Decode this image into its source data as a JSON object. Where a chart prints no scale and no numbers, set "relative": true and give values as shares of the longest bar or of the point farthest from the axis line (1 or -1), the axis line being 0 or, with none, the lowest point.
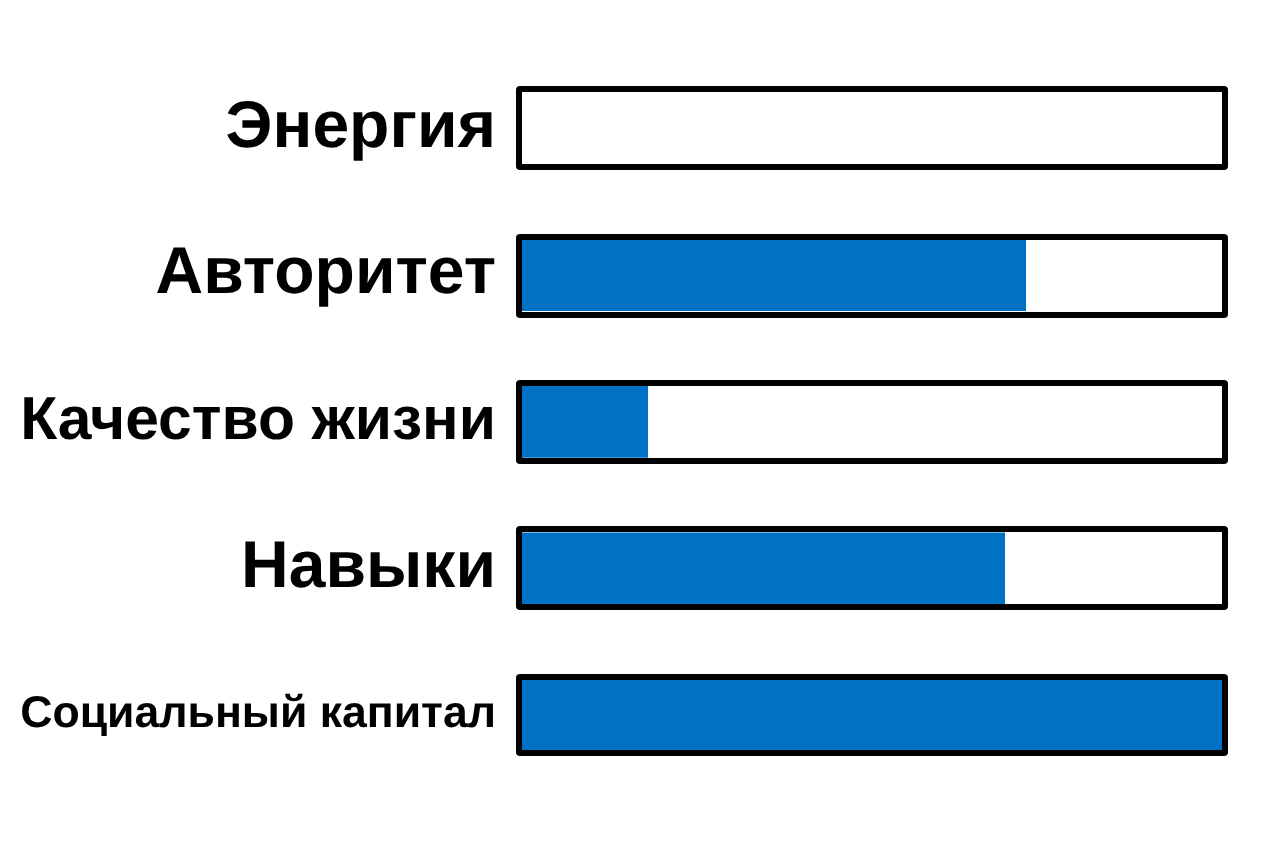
{
  "chart_data": {
    "type": "bar",
    "orientation": "horizontal",
    "relative": true,
    "tick_labels": "y",
    "categories": [
      "Энергия",
      "Авторитет",
      "Качество жизни",
      "Навыки",
      "Социальный капитал"
    ],
    "values": [
      0,
      0.72,
      0.18,
      0.69,
      1
    ],
    "color": "#0072c6"
  }
}
